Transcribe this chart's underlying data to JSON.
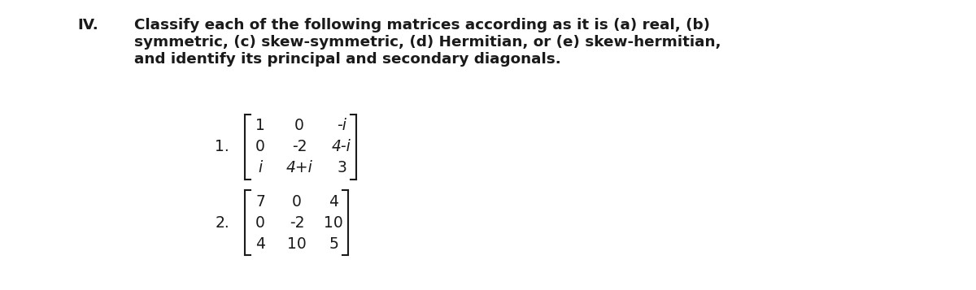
{
  "background_color": "#ffffff",
  "text_color": "#1a1a1a",
  "roman_numeral": "IV.",
  "paragraph_text_line1": "Classify each of the following matrices according as it is (a) real, (b)",
  "paragraph_text_line2": "symmetric, (c) skew-symmetric, (d) Hermitian, or (e) skew-hermitian,",
  "paragraph_text_line3": "and identify its principal and secondary diagonals.",
  "header_fontsize": 13.2,
  "matrix_fontsize": 13.5,
  "label_fontsize": 13.5,
  "matrix1_rows": [
    [
      "1",
      "0",
      "-i"
    ],
    [
      "0",
      "-2",
      "4-i"
    ],
    [
      "i",
      "4+i",
      "3"
    ]
  ],
  "matrix2_rows": [
    [
      "7",
      "0",
      "4"
    ],
    [
      "0",
      "-2",
      "10"
    ],
    [
      "4",
      "10",
      "5"
    ]
  ],
  "matrix1_has_italic": [
    [
      false,
      false,
      true
    ],
    [
      false,
      false,
      true
    ],
    [
      true,
      true,
      false
    ]
  ],
  "matrix2_has_italic": [
    [
      false,
      false,
      false
    ],
    [
      false,
      false,
      false
    ],
    [
      false,
      false,
      false
    ]
  ]
}
